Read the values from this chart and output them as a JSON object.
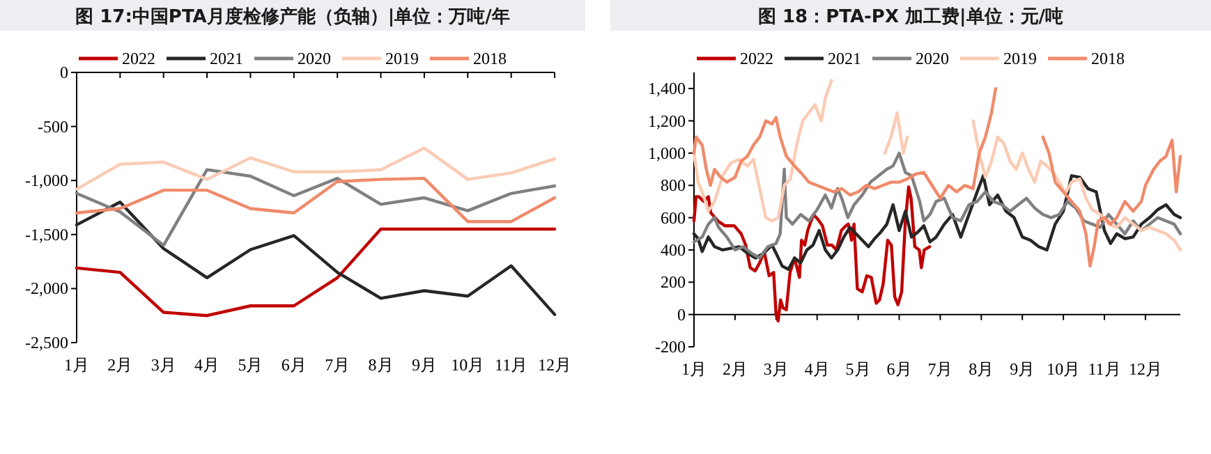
{
  "chart_data": [
    {
      "type": "line",
      "title": "图 17:中国PTA月度检修产能（负轴）|单位：万吨/年",
      "legend": "top",
      "categories": [
        "1月",
        "2月",
        "3月",
        "4月",
        "5月",
        "6月",
        "7月",
        "8月",
        "9月",
        "10月",
        "11月",
        "12月"
      ],
      "ylim": [
        -2500,
        0
      ],
      "yticks": [
        {
          "value": -2500,
          "label": "-2,500"
        },
        {
          "value": -2000,
          "label": "-2,000"
        },
        {
          "value": -1500,
          "label": "-1,500"
        },
        {
          "value": -1000,
          "label": "-1,000"
        },
        -500,
        0
      ],
      "series": [
        {
          "name": "2022",
          "color": "#c00000",
          "values": [
            -1810,
            -1850,
            -2220,
            -2250,
            -2160,
            -2160,
            -1900,
            -1450,
            -1450,
            -1450,
            -1450,
            -1450
          ]
        },
        {
          "name": "2021",
          "color": "#262626",
          "values": [
            -1410,
            -1200,
            -1630,
            -1900,
            -1640,
            -1510,
            -1850,
            -2090,
            -2020,
            -2070,
            -1790,
            -2240
          ]
        },
        {
          "name": "2020",
          "color": "#808080",
          "values": [
            -1120,
            -1290,
            -1600,
            -900,
            -960,
            -1140,
            -980,
            -1220,
            -1160,
            -1280,
            -1120,
            -1050
          ]
        },
        {
          "name": "2019",
          "color": "#fbcbb4",
          "values": [
            -1080,
            -850,
            -830,
            -990,
            -790,
            -920,
            -920,
            -900,
            -700,
            -990,
            -930,
            -800
          ]
        },
        {
          "name": "2018",
          "color": "#f08a6a",
          "values": [
            -1300,
            -1260,
            -1090,
            -1090,
            -1260,
            -1300,
            -1010,
            -990,
            -980,
            -1380,
            -1380,
            -1160
          ]
        }
      ]
    },
    {
      "type": "line",
      "title": "图 18：PTA-PX 加工费|单位：元/吨",
      "legend": "top",
      "xlim": [
        1,
        12.85
      ],
      "xticks": [
        {
          "value": 1,
          "label": "1月"
        },
        {
          "value": 2,
          "label": "2月"
        },
        {
          "value": 3,
          "label": "3月"
        },
        {
          "value": 4,
          "label": "4月"
        },
        {
          "value": 5,
          "label": "5月"
        },
        {
          "value": 6,
          "label": "6月"
        },
        {
          "value": 7,
          "label": "7月"
        },
        {
          "value": 8,
          "label": "8月"
        },
        {
          "value": 9,
          "label": "9月"
        },
        {
          "value": 10,
          "label": "10月"
        },
        {
          "value": 11,
          "label": "11月"
        },
        {
          "value": 12,
          "label": "12月"
        }
      ],
      "ylim": [
        -200,
        1500
      ],
      "yticks": [
        -200,
        0,
        200,
        400,
        600,
        800,
        {
          "value": 1000,
          "label": "1,000"
        },
        {
          "value": 1200,
          "label": "1,200"
        },
        {
          "value": 1400,
          "label": "1,400"
        }
      ],
      "series": [
        {
          "name": "2022",
          "color": "#c00000",
          "x": [
            1.0,
            1.05,
            1.12,
            1.24,
            1.35,
            1.41,
            1.58,
            1.75,
            1.98,
            2.15,
            2.26,
            2.37,
            2.49,
            2.6,
            2.71,
            2.83,
            2.94,
            3.0,
            3.05,
            3.11,
            3.17,
            3.25,
            3.34,
            3.45,
            3.57,
            3.62,
            3.7,
            3.77,
            3.91,
            4.02,
            4.13,
            4.25,
            4.36,
            4.47,
            4.59,
            4.7,
            4.76,
            4.84,
            4.9,
            4.98,
            5.1,
            5.21,
            5.32,
            5.44,
            5.52,
            5.61,
            5.72,
            5.81,
            5.89,
            5.97,
            6.06,
            6.15,
            6.23,
            6.29,
            6.38,
            6.49,
            6.54,
            6.61,
            6.74
          ],
          "values": [
            580,
            730,
            730,
            700,
            730,
            630,
            580,
            550,
            550,
            500,
            430,
            290,
            270,
            320,
            390,
            240,
            260,
            0,
            -40,
            90,
            40,
            30,
            260,
            350,
            230,
            460,
            430,
            520,
            620,
            590,
            550,
            430,
            430,
            400,
            520,
            550,
            560,
            460,
            560,
            160,
            140,
            240,
            230,
            70,
            90,
            190,
            460,
            430,
            110,
            60,
            140,
            580,
            790,
            720,
            420,
            400,
            290,
            400,
            420
          ]
        },
        {
          "name": "2021",
          "color": "#262626",
          "x": [
            1.0,
            1.1,
            1.2,
            1.35,
            1.5,
            1.7,
            1.9,
            2.1,
            2.3,
            2.5,
            2.7,
            2.9,
            3.0,
            3.15,
            3.3,
            3.45,
            3.6,
            3.75,
            3.9,
            4.05,
            4.2,
            4.35,
            4.5,
            4.65,
            4.8,
            4.95,
            5.1,
            5.25,
            5.4,
            5.55,
            5.7,
            5.85,
            6.0,
            6.15,
            6.3,
            6.45,
            6.6,
            6.75,
            6.9,
            7.1,
            7.3,
            7.5,
            7.7,
            7.9,
            8.05,
            8.2,
            8.4,
            8.6,
            8.8,
            9.0,
            9.2,
            9.4,
            9.6,
            9.8,
            10.0,
            10.2,
            10.4,
            10.6,
            10.8,
            11.0,
            11.15,
            11.3,
            11.5,
            11.7,
            11.9,
            12.1,
            12.3,
            12.5,
            12.7,
            12.85
          ],
          "values": [
            500,
            470,
            390,
            480,
            420,
            400,
            410,
            420,
            380,
            350,
            380,
            430,
            380,
            300,
            280,
            350,
            320,
            400,
            430,
            520,
            400,
            350,
            400,
            480,
            540,
            500,
            460,
            420,
            470,
            510,
            560,
            680,
            520,
            640,
            480,
            510,
            550,
            450,
            480,
            560,
            620,
            480,
            620,
            760,
            860,
            680,
            740,
            640,
            600,
            480,
            460,
            420,
            400,
            560,
            640,
            860,
            850,
            780,
            760,
            520,
            440,
            500,
            470,
            480,
            560,
            600,
            650,
            680,
            620,
            600
          ]
        },
        {
          "name": "2020",
          "color": "#808080",
          "x": [
            1.0,
            1.2,
            1.35,
            1.5,
            1.6,
            1.8,
            2.0,
            2.2,
            2.4,
            2.6,
            2.8,
            3.0,
            3.1,
            3.2,
            3.25,
            3.4,
            3.6,
            3.8,
            4.0,
            4.2,
            4.35,
            4.5,
            4.6,
            4.75,
            4.9,
            5.1,
            5.3,
            5.5,
            5.7,
            5.85,
            6.0,
            6.15,
            6.3,
            6.5,
            6.6,
            6.75,
            6.9,
            7.1,
            7.3,
            7.5,
            7.7,
            7.9,
            8.1,
            8.3,
            8.5,
            8.7,
            8.9,
            9.1,
            9.3,
            9.5,
            9.7,
            9.9,
            10.1,
            10.3,
            10.5,
            10.7,
            10.9,
            11.1,
            11.3,
            11.5,
            11.7,
            11.9,
            12.1,
            12.3,
            12.5,
            12.7,
            12.85
          ],
          "values": [
            450,
            480,
            560,
            600,
            540,
            480,
            400,
            420,
            380,
            350,
            420,
            440,
            500,
            900,
            600,
            560,
            620,
            580,
            650,
            740,
            660,
            780,
            720,
            600,
            680,
            740,
            820,
            860,
            900,
            920,
            1000,
            880,
            860,
            700,
            580,
            620,
            700,
            720,
            600,
            580,
            680,
            700,
            760,
            700,
            680,
            640,
            680,
            720,
            660,
            620,
            600,
            620,
            700,
            660,
            580,
            560,
            540,
            620,
            560,
            500,
            580,
            520,
            560,
            600,
            580,
            560,
            500
          ]
        },
        {
          "name": "2019",
          "color": "#fbcbb4",
          "x": [
            1.0,
            1.1,
            1.2,
            1.35,
            1.5,
            1.7,
            1.9,
            2.1,
            2.3,
            2.45,
            2.6,
            2.75,
            2.9,
            3.05,
            3.2,
            3.35,
            3.5,
            3.65,
            3.8,
            3.95,
            4.1,
            4.2,
            4.35,
            4.45,
            5.0,
            5.55,
            5.65,
            5.8,
            5.95,
            6.1,
            6.2,
            6.35,
            7.0,
            7.65,
            7.8,
            7.95,
            8.1,
            8.25,
            8.4,
            8.55,
            8.7,
            8.85,
            9.0,
            9.15,
            9.3,
            9.45,
            9.6,
            9.75,
            9.9,
            10.05,
            10.2,
            10.4,
            10.55,
            10.7,
            10.9,
            11.1,
            11.3,
            11.5,
            11.7,
            11.9,
            12.1,
            12.3,
            12.5,
            12.7,
            12.85
          ],
          "values": [
            1000,
            820,
            760,
            640,
            700,
            860,
            940,
            960,
            920,
            960,
            780,
            600,
            580,
            600,
            800,
            840,
            1050,
            1200,
            1250,
            1300,
            1200,
            1340,
            1450,
            null,
            null,
            null,
            1000,
            1100,
            1250,
            1000,
            1100,
            null,
            null,
            null,
            1200,
            1000,
            850,
            950,
            1100,
            1060,
            950,
            900,
            1000,
            900,
            820,
            950,
            920,
            880,
            820,
            750,
            820,
            840,
            720,
            650,
            620,
            560,
            540,
            600,
            560,
            520,
            540,
            520,
            500,
            460,
            400
          ]
        },
        {
          "name": "2018",
          "color": "#f08a6a",
          "x": [
            1.0,
            1.05,
            1.2,
            1.3,
            1.4,
            1.5,
            1.65,
            1.8,
            2.0,
            2.15,
            2.3,
            2.45,
            2.6,
            2.75,
            2.9,
            3.0,
            3.1,
            3.25,
            3.45,
            3.6,
            3.8,
            4.0,
            4.2,
            4.4,
            4.6,
            4.8,
            5.0,
            5.2,
            5.4,
            5.6,
            5.8,
            6.0,
            6.2,
            6.4,
            6.6,
            6.8,
            7.0,
            7.2,
            7.4,
            7.6,
            7.8,
            7.95,
            8.1,
            8.25,
            8.35,
            8.45,
            9.0,
            9.45,
            9.5,
            9.65,
            9.8,
            10.0,
            10.2,
            10.4,
            10.55,
            10.65,
            10.75,
            10.85,
            11.0,
            11.15,
            11.3,
            11.5,
            11.7,
            11.9,
            12.0,
            12.2,
            12.35,
            12.5,
            12.65,
            12.75,
            12.85
          ],
          "values": [
            1000,
            1100,
            1050,
            900,
            800,
            900,
            850,
            820,
            850,
            950,
            980,
            1050,
            1100,
            1200,
            1180,
            1220,
            1100,
            980,
            920,
            880,
            820,
            800,
            780,
            760,
            780,
            740,
            760,
            800,
            780,
            800,
            820,
            820,
            840,
            870,
            880,
            800,
            720,
            800,
            760,
            800,
            780,
            1000,
            1100,
            1250,
            1400,
            null,
            null,
            null,
            1100,
            1000,
            820,
            760,
            700,
            640,
            500,
            300,
            420,
            580,
            600,
            560,
            600,
            700,
            640,
            700,
            800,
            900,
            950,
            980,
            1080,
            760,
            980
          ]
        }
      ]
    }
  ]
}
